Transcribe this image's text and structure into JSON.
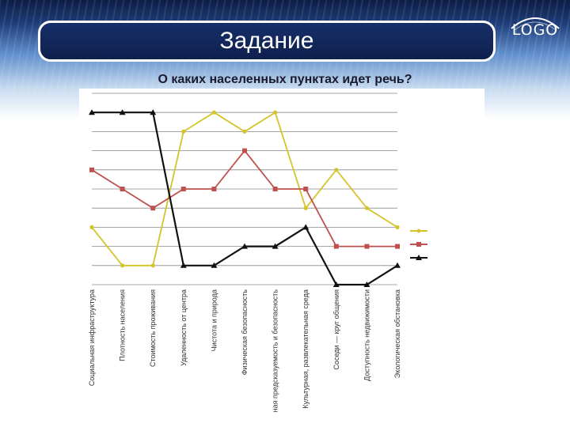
{
  "slide": {
    "title": "Задание",
    "subtitle": "О каких населенных пунктах идет речь?",
    "logo": "LOGO"
  },
  "chart_data": {
    "type": "line",
    "title": "",
    "xlabel": "",
    "ylabel": "",
    "grid": true,
    "legend_position": "right",
    "categories": [
      "Социальная инфраструктура",
      "Плотность населения",
      "Стоимость проживания",
      "Удаленность от центра",
      "Чистота и природа",
      "Физическая безопасность",
      "Личная предсказуемость и безопасность",
      "Культурная, развлекательная среда",
      "Соседи — круг общения",
      "Доступность недвижимости",
      "Экологическая обстановка"
    ],
    "ylim": [
      0,
      10
    ],
    "series": [
      {
        "name": "",
        "color": "#d4c42a",
        "marker": "circle",
        "values": [
          3,
          1,
          1,
          8,
          9,
          8,
          9,
          4,
          6,
          4,
          3
        ]
      },
      {
        "name": "",
        "color": "#c0504d",
        "marker": "square",
        "values": [
          6,
          5,
          4,
          5,
          5,
          7,
          5,
          5,
          2,
          2,
          2
        ]
      },
      {
        "name": "",
        "color": "#111111",
        "marker": "triangle",
        "values": [
          9,
          9,
          9,
          1,
          1,
          2,
          2,
          3,
          0,
          0,
          1
        ]
      }
    ]
  }
}
